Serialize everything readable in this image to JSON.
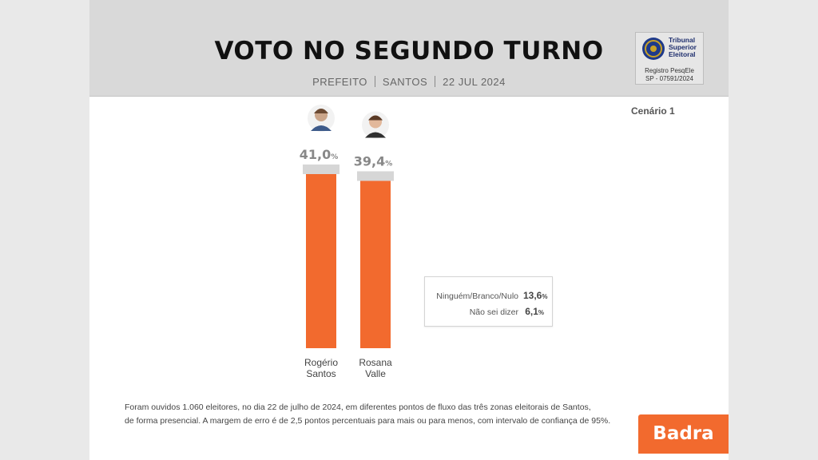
{
  "header": {
    "title": "VOTO NO SEGUNDO TURNO",
    "subtitle_parts": [
      "PREFEITO",
      "SANTOS",
      "22 JUL 2024"
    ]
  },
  "registration": {
    "org_lines": [
      "Tribunal",
      "Superior",
      "Eleitoral"
    ],
    "registry_label": "Registro PesqEle",
    "registry_id": "SP - 07591/2024"
  },
  "scenario": "Cenário 1",
  "chart_data": {
    "type": "bar",
    "categories": [
      "Rogério Santos",
      "Rosana Valle"
    ],
    "category_label_lines": [
      [
        "Rogério",
        "Santos"
      ],
      [
        "Rosana",
        "Valle"
      ]
    ],
    "values": [
      41.0,
      39.4
    ],
    "value_labels": [
      "41,0",
      "39,4"
    ],
    "unit": "%",
    "ylim": [
      0,
      41.0
    ],
    "bar_color": "#f26a2e",
    "other_responses": [
      {
        "label": "Ninguém/Branco/Nulo",
        "value": 13.6,
        "value_label": "13,6"
      },
      {
        "label": "Não sei dizer",
        "value": 6.1,
        "value_label": "6,1"
      }
    ]
  },
  "footnote": [
    "Foram ouvidos 1.060 eleitores, no dia 22 de julho de 2024, em diferentes pontos de fluxo das três zonas eleitorais de Santos,",
    "de forma presencial. A margem de erro é de 2,5 pontos percentuais para mais ou para menos, com intervalo de confiança de 95%."
  ],
  "brand": "Badra",
  "colors": {
    "accent": "#f26a2e",
    "header_bg": "#d9d9d9"
  }
}
